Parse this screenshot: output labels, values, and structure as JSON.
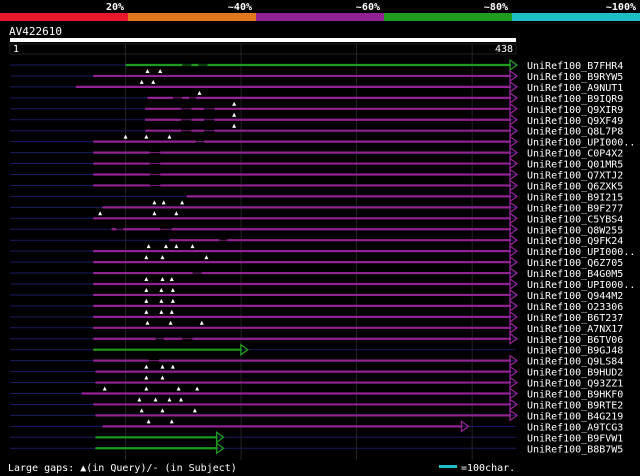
{
  "identity_scale": {
    "labels": [
      "20%",
      "~40%",
      "~60%",
      "~80%",
      "~100%"
    ],
    "colors": [
      "#e81828",
      "#e2781e",
      "#922294",
      "#1e9c1e",
      "#1ebec6"
    ]
  },
  "query": {
    "id": "AV422610",
    "start_label": "1",
    "end_label": "438",
    "length": 438
  },
  "hits": [
    {
      "name": "UniRef100_B7FHR4",
      "color": "#1e9c1e",
      "start": 100,
      "end": 438,
      "arrow": true,
      "gaps_q": [],
      "dashes": [
        [
          149,
          157
        ],
        [
          163,
          171
        ]
      ]
    },
    {
      "name": "UniRef100_B9RYW5",
      "color": "#922294",
      "start": 72,
      "end": 438,
      "arrow": true,
      "gaps_q": [
        119,
        130
      ],
      "dashes": []
    },
    {
      "name": "UniRef100_A9NUT1",
      "color": "#922294",
      "start": 57,
      "end": 438,
      "arrow": true,
      "gaps_q": [
        114,
        124
      ],
      "dashes": []
    },
    {
      "name": "UniRef100_B9IQR9",
      "color": "#922294",
      "start": 119,
      "end": 438,
      "arrow": true,
      "gaps_q": [
        164
      ],
      "dashes": [
        [
          141,
          149
        ],
        [
          155,
          161
        ]
      ]
    },
    {
      "name": "UniRef100_Q9XIR9",
      "color": "#922294",
      "start": 117,
      "end": 438,
      "arrow": true,
      "gaps_q": [
        194
      ],
      "dashes": [
        [
          148,
          157
        ],
        [
          168,
          177
        ]
      ]
    },
    {
      "name": "UniRef100_Q9XF49",
      "color": "#922294",
      "start": 117,
      "end": 438,
      "arrow": true,
      "gaps_q": [
        194
      ],
      "dashes": [
        [
          148,
          157
        ],
        [
          168,
          177
        ]
      ]
    },
    {
      "name": "UniRef100_Q8L7P8",
      "color": "#922294",
      "start": 117,
      "end": 438,
      "arrow": true,
      "gaps_q": [
        194
      ],
      "dashes": [
        [
          148,
          157
        ],
        [
          168,
          177
        ]
      ]
    },
    {
      "name": "UniRef100_UPI000..",
      "color": "#922294",
      "start": 72,
      "end": 438,
      "arrow": true,
      "gaps_q": [
        100,
        118,
        138
      ],
      "dashes": [
        [
          161,
          168
        ]
      ]
    },
    {
      "name": "UniRef100_C0P4X2",
      "color": "#922294",
      "start": 72,
      "end": 438,
      "arrow": true,
      "gaps_q": [],
      "dashes": [
        [
          121,
          130
        ]
      ]
    },
    {
      "name": "UniRef100_Q01MR5",
      "color": "#922294",
      "start": 72,
      "end": 438,
      "arrow": true,
      "gaps_q": [],
      "dashes": [
        [
          121,
          130
        ]
      ]
    },
    {
      "name": "UniRef100_Q7XTJ2",
      "color": "#922294",
      "start": 72,
      "end": 438,
      "arrow": true,
      "gaps_q": [],
      "dashes": [
        [
          121,
          130
        ]
      ]
    },
    {
      "name": "UniRef100_Q6ZXK5",
      "color": "#922294",
      "start": 72,
      "end": 438,
      "arrow": true,
      "gaps_q": [],
      "dashes": [
        [
          121,
          130
        ]
      ]
    },
    {
      "name": "UniRef100_B9I215",
      "color": "#922294",
      "start": 153,
      "end": 438,
      "arrow": true,
      "gaps_q": [],
      "dashes": []
    },
    {
      "name": "UniRef100_B9F277",
      "color": "#922294",
      "start": 80,
      "end": 438,
      "arrow": true,
      "gaps_q": [
        125,
        133,
        149
      ],
      "dashes": []
    },
    {
      "name": "UniRef100_C5YBS4",
      "color": "#922294",
      "start": 72,
      "end": 438,
      "arrow": true,
      "gaps_q": [
        78,
        125,
        144
      ],
      "dashes": []
    },
    {
      "name": "UniRef100_Q8W255",
      "color": "#922294",
      "start": 88,
      "end": 438,
      "arrow": true,
      "gaps_q": [],
      "dashes": [
        [
          92,
          98
        ],
        [
          130,
          140
        ]
      ]
    },
    {
      "name": "UniRef100_Q9FK24",
      "color": "#922294",
      "start": 138,
      "end": 438,
      "arrow": true,
      "gaps_q": [],
      "dashes": [
        [
          181,
          188
        ]
      ]
    },
    {
      "name": "UniRef100_UPI000..",
      "color": "#922294",
      "start": 72,
      "end": 438,
      "arrow": true,
      "gaps_q": [
        120,
        135,
        144,
        158
      ],
      "dashes": []
    },
    {
      "name": "UniRef100_Q6Z705",
      "color": "#922294",
      "start": 72,
      "end": 438,
      "arrow": true,
      "gaps_q": [
        118,
        132,
        170
      ],
      "dashes": []
    },
    {
      "name": "UniRef100_B4G0M5",
      "color": "#922294",
      "start": 72,
      "end": 438,
      "arrow": true,
      "gaps_q": [],
      "dashes": [
        [
          158,
          166
        ]
      ]
    },
    {
      "name": "UniRef100_UPI000..",
      "color": "#922294",
      "start": 72,
      "end": 438,
      "arrow": true,
      "gaps_q": [
        118,
        132,
        140
      ],
      "dashes": []
    },
    {
      "name": "UniRef100_Q944M2",
      "color": "#922294",
      "start": 72,
      "end": 438,
      "arrow": true,
      "gaps_q": [
        118,
        131,
        141
      ],
      "dashes": []
    },
    {
      "name": "UniRef100_O23306",
      "color": "#922294",
      "start": 72,
      "end": 438,
      "arrow": true,
      "gaps_q": [
        118,
        131,
        141
      ],
      "dashes": []
    },
    {
      "name": "UniRef100_B6T237",
      "color": "#922294",
      "start": 72,
      "end": 438,
      "arrow": true,
      "gaps_q": [
        118,
        131,
        140
      ],
      "dashes": []
    },
    {
      "name": "UniRef100_A7NX17",
      "color": "#922294",
      "start": 72,
      "end": 438,
      "arrow": true,
      "gaps_q": [
        119,
        139,
        166
      ],
      "dashes": []
    },
    {
      "name": "UniRef100_B6TV06",
      "color": "#922294",
      "start": 72,
      "end": 438,
      "arrow": true,
      "gaps_q": [],
      "dashes": [
        [
          126,
          133
        ],
        [
          149,
          158
        ]
      ]
    },
    {
      "name": "UniRef100_B9GJ48",
      "color": "#1e9c1e",
      "start": 72,
      "end": 205,
      "arrow": true,
      "gaps_q": [],
      "dashes": []
    },
    {
      "name": "UniRef100_Q9LS84",
      "color": "#922294",
      "start": 72,
      "end": 438,
      "arrow": true,
      "gaps_q": [],
      "dashes": [
        [
          120,
          129
        ]
      ]
    },
    {
      "name": "UniRef100_B9HUD2",
      "color": "#922294",
      "start": 74,
      "end": 438,
      "arrow": true,
      "gaps_q": [
        118,
        132,
        141
      ],
      "dashes": []
    },
    {
      "name": "UniRef100_Q93ZZ1",
      "color": "#922294",
      "start": 74,
      "end": 438,
      "arrow": true,
      "gaps_q": [
        118,
        132
      ],
      "dashes": []
    },
    {
      "name": "UniRef100_B9HKF0",
      "color": "#922294",
      "start": 62,
      "end": 438,
      "arrow": true,
      "gaps_q": [
        82,
        118,
        146,
        162
      ],
      "dashes": []
    },
    {
      "name": "UniRef100_B9RTE2",
      "color": "#922294",
      "start": 72,
      "end": 438,
      "arrow": true,
      "gaps_q": [
        112,
        126,
        138,
        148
      ],
      "dashes": []
    },
    {
      "name": "UniRef100_B4G219",
      "color": "#922294",
      "start": 74,
      "end": 438,
      "arrow": true,
      "gaps_q": [
        114,
        132,
        160
      ],
      "dashes": []
    },
    {
      "name": "UniRef100_A9TCG3",
      "color": "#922294",
      "start": 80,
      "end": 396,
      "arrow": true,
      "gaps_q": [
        120,
        140
      ],
      "dashes": []
    },
    {
      "name": "UniRef100_B9FVW1",
      "color": "#1e9c1e",
      "start": 74,
      "end": 184,
      "arrow": true,
      "gaps_q": [],
      "dashes": []
    },
    {
      "name": "UniRef100_B8B7W5",
      "color": "#1e9c1e",
      "start": 74,
      "end": 184,
      "arrow": true,
      "gaps_q": [],
      "dashes": []
    }
  ],
  "footer": {
    "gaps_legend": "Large gaps: ▲(in Query)/- (in Subject)",
    "scale_legend": "=100char.",
    "scale_color": "#1ebec6"
  }
}
